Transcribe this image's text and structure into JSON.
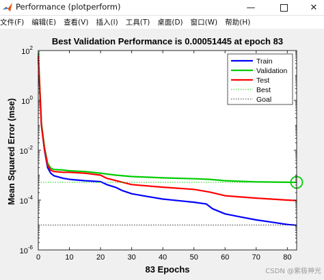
{
  "window": {
    "title": "Performance (plotperform)",
    "icon": "matlab-logo-icon",
    "controls": [
      "minimize-icon",
      "maximize-icon",
      "close-icon"
    ]
  },
  "menu": {
    "items": [
      "文件(F)",
      "编辑(E)",
      "查看(V)",
      "插入(I)",
      "工具(T)",
      "桌面(D)",
      "窗口(W)",
      "帮助(H)"
    ]
  },
  "watermark": "CSDN @紫极神光",
  "chart_data": {
    "type": "line",
    "title": "Best Validation Performance is 0.00051445 at epoch 83",
    "xlabel": "83 Epochs",
    "ylabel": "Mean Squared Error  (mse)",
    "xlim": [
      0,
      83
    ],
    "ylim": [
      1e-06,
      100
    ],
    "yscale": "log",
    "x_ticks": [
      "0",
      "10",
      "20",
      "30",
      "40",
      "50",
      "60",
      "70",
      "80"
    ],
    "y_ticks": [
      {
        "base": "10",
        "exp": "2"
      },
      {
        "base": "10",
        "exp": "0"
      },
      {
        "base": "10",
        "exp": "-2"
      },
      {
        "base": "10",
        "exp": "-4"
      },
      {
        "base": "10",
        "exp": "-6"
      }
    ],
    "legend_position": "top-right",
    "series": [
      {
        "name": "Train",
        "color": "#0000ff",
        "style": "solid",
        "x": [
          0,
          1,
          2,
          3,
          4,
          5,
          8,
          10,
          15,
          20,
          22,
          25,
          27,
          30,
          35,
          40,
          45,
          50,
          54,
          56,
          60,
          65,
          70,
          75,
          80,
          83
        ],
        "y": [
          50,
          0.1,
          0.01,
          0.002,
          0.0012,
          0.00095,
          0.00075,
          0.00068,
          0.0006,
          0.00055,
          0.00042,
          0.00032,
          0.00024,
          0.00018,
          0.00014,
          0.00011,
          9.5e-05,
          8.2e-05,
          7e-05,
          4.5e-05,
          2.8e-05,
          2.1e-05,
          1.6e-05,
          1.3e-05,
          1.05e-05,
          9.8e-06
        ]
      },
      {
        "name": "Validation",
        "color": "#00cc00",
        "style": "solid",
        "x": [
          0,
          1,
          2,
          3,
          4,
          5,
          8,
          10,
          15,
          20,
          25,
          30,
          40,
          50,
          55,
          60,
          70,
          80,
          83
        ],
        "y": [
          80,
          0.12,
          0.013,
          0.003,
          0.0019,
          0.0017,
          0.0016,
          0.0015,
          0.0014,
          0.0012,
          0.001,
          0.00088,
          0.00078,
          0.00072,
          0.00068,
          0.0006,
          0.00054,
          0.00052,
          0.00051445
        ]
      },
      {
        "name": "Test",
        "color": "#ff0000",
        "style": "solid",
        "x": [
          0,
          1,
          2,
          3,
          4,
          5,
          8,
          10,
          15,
          20,
          22,
          25,
          30,
          40,
          50,
          55,
          60,
          70,
          80,
          83
        ],
        "y": [
          60,
          0.1,
          0.011,
          0.0025,
          0.0016,
          0.0014,
          0.0013,
          0.0013,
          0.0012,
          0.001,
          0.00075,
          0.0006,
          0.00042,
          0.00033,
          0.00027,
          0.00021,
          0.00015,
          0.00012,
          0.0001,
          9.6e-05
        ]
      },
      {
        "name": "Best",
        "color": "#00cc00",
        "style": "dotted",
        "hline_y": 0.00051445,
        "vline_x": 83
      },
      {
        "name": "Goal",
        "color": "#333333",
        "style": "dotted",
        "hline_y": 1e-05
      }
    ],
    "best_marker": {
      "x": 83,
      "y": 0.00051445,
      "color": "#00cc00"
    }
  }
}
